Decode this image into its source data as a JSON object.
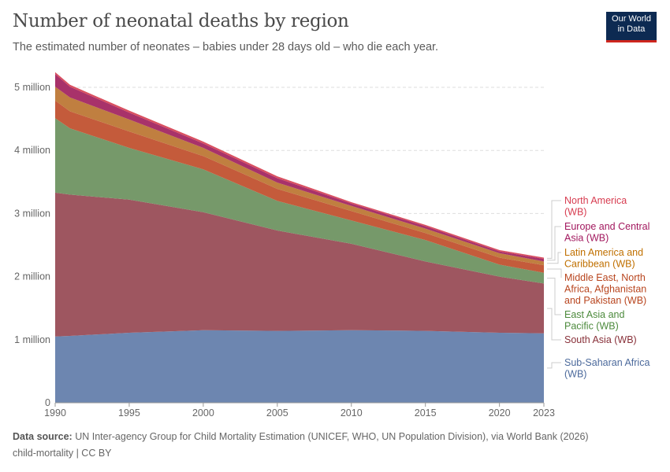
{
  "title": "Number of neonatal deaths by region",
  "subtitle": "The estimated number of neonates – babies under 28 days old – who die each year.",
  "logo": {
    "line1": "Our World",
    "line2": "in Data"
  },
  "footer": {
    "source_label": "Data source:",
    "source": "UN Inter-agency Group for Child Mortality Estimation (UNICEF, WHO, UN Population Division), via World Bank (2026)",
    "note": "child-mortality | CC BY"
  },
  "chart_data": {
    "type": "area",
    "stacked": true,
    "title": "Number of neonatal deaths by region",
    "x": [
      1990,
      1991,
      1995,
      2000,
      2005,
      2010,
      2015,
      2020,
      2023
    ],
    "x_ticks": [
      "1990",
      "1995",
      "2000",
      "2005",
      "2010",
      "2015",
      "2020",
      "2023"
    ],
    "y_ticks": [
      "0",
      "1 million",
      "2 million",
      "3 million",
      "4 million",
      "5 million"
    ],
    "ylim": [
      0,
      5300000
    ],
    "grid": true,
    "legend": "right",
    "series": [
      {
        "name": "Sub-Saharan Africa (WB)",
        "color": "#6d86b0",
        "label_color": "#4c6a9c",
        "values": [
          1050000,
          1060000,
          1110000,
          1150000,
          1140000,
          1150000,
          1140000,
          1110000,
          1100000
        ]
      },
      {
        "name": "South Asia (WB)",
        "color": "#9e5660",
        "label_color": "#883039",
        "values": [
          2280000,
          2240000,
          2110000,
          1870000,
          1590000,
          1370000,
          1100000,
          890000,
          790000
        ]
      },
      {
        "name": "East Asia and Pacific (WB)",
        "color": "#76996a",
        "label_color": "#4c8a3c",
        "values": [
          1180000,
          1050000,
          820000,
          680000,
          470000,
          370000,
          340000,
          190000,
          170000
        ]
      },
      {
        "name": "Middle East, North Africa, Afghanistan and Pakistan (WB)",
        "color": "#c45b3b",
        "label_color": "#b8451e",
        "values": [
          280000,
          270000,
          260000,
          210000,
          190000,
          150000,
          110000,
          110000,
          120000
        ]
      },
      {
        "name": "Latin America and Caribbean (WB)",
        "color": "#c07f40",
        "label_color": "#c07000",
        "values": [
          220000,
          220000,
          190000,
          130000,
          100000,
          80000,
          70000,
          70000,
          60000
        ]
      },
      {
        "name": "Europe and Central Asia (WB)",
        "color": "#a8326a",
        "label_color": "#a2185e",
        "values": [
          200000,
          170000,
          110000,
          70000,
          70000,
          40000,
          40000,
          30000,
          40000
        ]
      },
      {
        "name": "North America (WB)",
        "color": "#d94f5f",
        "label_color": "#d73c50",
        "values": [
          30000,
          30000,
          30000,
          30000,
          30000,
          20000,
          20000,
          20000,
          20000
        ]
      }
    ]
  }
}
